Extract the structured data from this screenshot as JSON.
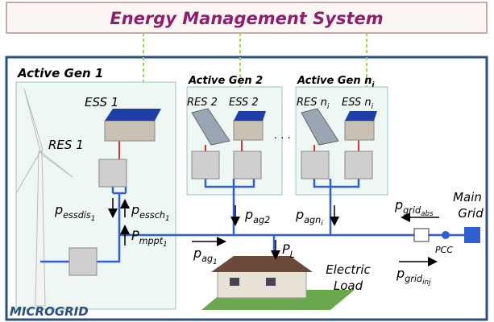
{
  "header": {
    "title": "Energy Management System"
  },
  "microgrid": {
    "label": "MICROGRID"
  },
  "gens": [
    {
      "title": {
        "base": "Active Gen 1"
      }
    },
    {
      "title": {
        "base": "Active Gen 2"
      }
    },
    {
      "title": {
        "base": "Active Gen n",
        "sub": "i"
      }
    }
  ],
  "units": {
    "ess1": {
      "base": "ESS 1"
    },
    "res1": {
      "base": "RES 1"
    },
    "res2": {
      "base": "RES 2"
    },
    "ess2": {
      "base": "ESS 2"
    },
    "resn": {
      "base": "RES n",
      "sub": "i"
    },
    "essn": {
      "base": "ESS n",
      "sub": "i"
    }
  },
  "ellipsis": ". . .",
  "flows": {
    "essdis": {
      "base": "p",
      "sub": "essdis",
      "subsub": "1"
    },
    "essch": {
      "base": "p",
      "sub": "essch",
      "subsub": "1"
    },
    "mppt": {
      "base": "P",
      "sub": "mppt",
      "subsub": "1"
    },
    "ag1": {
      "base": "p",
      "sub": "ag",
      "subsub": "1"
    },
    "ag2": {
      "base": "p",
      "sub": "ag2"
    },
    "agn": {
      "base": "p",
      "sub": "agn",
      "subsub": "i"
    },
    "load": {
      "base": "P",
      "sub": "L"
    },
    "gridabs": {
      "base": "p",
      "sub": "grid",
      "subsub": "abs"
    },
    "gridinj": {
      "base": "p",
      "sub": "grid",
      "subsub": "inj"
    }
  },
  "load": {
    "line1": "Electric",
    "line2": "Load"
  },
  "grid": {
    "line1": "Main",
    "line2": "Grid"
  },
  "pcc": "PCC"
}
